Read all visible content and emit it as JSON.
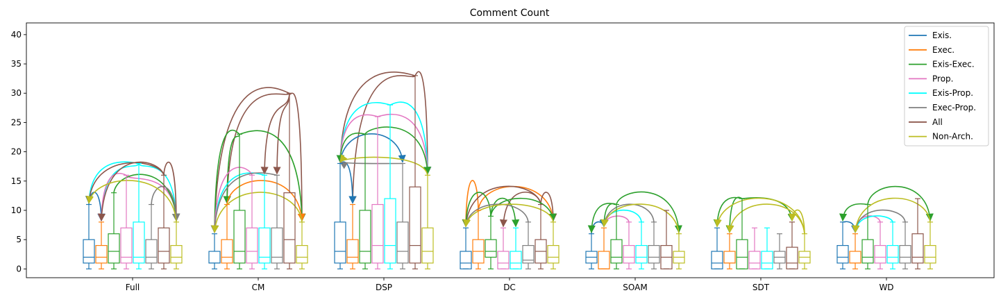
{
  "chart_data": {
    "type": "box",
    "title": "Comment Count",
    "xlabel": "",
    "ylabel": "",
    "ylim": [
      -1.5,
      42
    ],
    "yticks": [
      0,
      5,
      10,
      15,
      20,
      25,
      30,
      35,
      40
    ],
    "legend_position": "top-right",
    "categories": [
      "Full",
      "CM",
      "DSP",
      "DC",
      "SOAM",
      "SDT",
      "WD"
    ],
    "series": [
      {
        "name": "Exis.",
        "color": "#1f77b4",
        "boxes": [
          {
            "min": 0,
            "q1": 1,
            "median": 2,
            "q3": 5,
            "max": 11
          },
          {
            "min": 0,
            "q1": 1,
            "median": 1,
            "q3": 3,
            "max": 6
          },
          {
            "min": 0,
            "q1": 1,
            "median": 3,
            "q3": 8,
            "max": 18
          },
          {
            "min": 0,
            "q1": 0,
            "median": 1,
            "q3": 3,
            "max": 7
          },
          {
            "min": 0,
            "q1": 1,
            "median": 2,
            "q3": 3,
            "max": 6
          },
          {
            "min": 0,
            "q1": 0,
            "median": 1,
            "q3": 3,
            "max": 7
          },
          {
            "min": 0,
            "q1": 1,
            "median": 2,
            "q3": 4,
            "max": 8
          }
        ]
      },
      {
        "name": "Exec.",
        "color": "#ff7f0e",
        "boxes": [
          {
            "min": 0,
            "q1": 1,
            "median": 2,
            "q3": 4,
            "max": 8
          },
          {
            "min": 0,
            "q1": 1,
            "median": 2,
            "q3": 5,
            "max": 11
          },
          {
            "min": 0,
            "q1": 1,
            "median": 2,
            "q3": 5,
            "max": 11
          },
          {
            "min": 0,
            "q1": 1,
            "median": 3,
            "q3": 5,
            "max": 10
          },
          {
            "min": 0,
            "q1": 0,
            "median": 0,
            "q3": 3,
            "max": 7
          },
          {
            "min": 0,
            "q1": 1,
            "median": 1,
            "q3": 3,
            "max": 6
          },
          {
            "min": 0,
            "q1": 1,
            "median": 1,
            "q3": 3,
            "max": 6
          }
        ]
      },
      {
        "name": "Exis-Exec.",
        "color": "#2ca02c",
        "boxes": [
          {
            "min": 0,
            "q1": 1,
            "median": 3,
            "q3": 6,
            "max": 13
          },
          {
            "min": 0,
            "q1": 1,
            "median": 3,
            "q3": 10,
            "max": 23
          },
          {
            "min": 0,
            "q1": 1,
            "median": 3,
            "q3": 10,
            "max": 23
          },
          {
            "min": 0,
            "q1": 2,
            "median": 3,
            "q3": 5,
            "max": 9
          },
          {
            "min": 0,
            "q1": 1,
            "median": 2,
            "q3": 5,
            "max": 11
          },
          {
            "min": 0,
            "q1": 0,
            "median": 2,
            "q3": 5,
            "max": 12
          },
          {
            "min": 0,
            "q1": 1,
            "median": 2,
            "q3": 5,
            "max": 11
          }
        ]
      },
      {
        "name": "Prop.",
        "color": "#e377c2",
        "boxes": [
          {
            "min": 0,
            "q1": 1,
            "median": 2,
            "q3": 7,
            "max": 16
          },
          {
            "min": 0,
            "q1": 1,
            "median": 3,
            "q3": 7,
            "max": 16
          },
          {
            "min": 0,
            "q1": 1,
            "median": 4,
            "q3": 11,
            "max": 26
          },
          {
            "min": 0,
            "q1": 0,
            "median": 1,
            "q3": 3,
            "max": 7
          },
          {
            "min": 0,
            "q1": 1,
            "median": 2,
            "q3": 4,
            "max": 8
          },
          {
            "min": 0,
            "q1": 0,
            "median": 1,
            "q3": 3,
            "max": 7
          },
          {
            "min": 0,
            "q1": 1,
            "median": 2,
            "q3": 4,
            "max": 8
          }
        ]
      },
      {
        "name": "Exis-Prop.",
        "color": "#00ffff",
        "boxes": [
          {
            "min": 0,
            "q1": 1,
            "median": 2,
            "q3": 8,
            "max": 18
          },
          {
            "min": 0,
            "q1": 1,
            "median": 2,
            "q3": 7,
            "max": 16
          },
          {
            "min": 0,
            "q1": 1,
            "median": 4,
            "q3": 12,
            "max": 28
          },
          {
            "min": 0,
            "q1": 0,
            "median": 1,
            "q3": 3,
            "max": 7
          },
          {
            "min": 0,
            "q1": 1,
            "median": 2,
            "q3": 4,
            "max": 8
          },
          {
            "min": 0,
            "q1": 0,
            "median": 1,
            "q3": 3,
            "max": 7
          },
          {
            "min": 0,
            "q1": 1,
            "median": 2,
            "q3": 4,
            "max": 8
          }
        ]
      },
      {
        "name": "Exec-Prop.",
        "color": "#7f7f7f",
        "boxes": [
          {
            "min": 0,
            "q1": 1,
            "median": 2,
            "q3": 5,
            "max": 11
          },
          {
            "min": 0,
            "q1": 1,
            "median": 2,
            "q3": 7,
            "max": 16
          },
          {
            "min": 0,
            "q1": 1,
            "median": 3,
            "q3": 8,
            "max": 18
          },
          {
            "min": 0,
            "q1": 1,
            "median": 1.5,
            "q3": 4,
            "max": 8
          },
          {
            "min": 0,
            "q1": 1,
            "median": 2,
            "q3": 4,
            "max": 8
          },
          {
            "min": 0,
            "q1": 1,
            "median": 2,
            "q3": 3,
            "max": 6
          },
          {
            "min": 0,
            "q1": 1,
            "median": 2,
            "q3": 4,
            "max": 8
          }
        ]
      },
      {
        "name": "All",
        "color": "#8c564b",
        "boxes": [
          {
            "min": 0,
            "q1": 1,
            "median": 3,
            "q3": 7,
            "max": 16
          },
          {
            "min": 0,
            "q1": 1,
            "median": 5,
            "q3": 13,
            "max": 30
          },
          {
            "min": 0,
            "q1": 1,
            "median": 4,
            "q3": 14,
            "max": 33
          },
          {
            "min": 0,
            "q1": 1,
            "median": 3,
            "q3": 5,
            "max": 11
          },
          {
            "min": 0,
            "q1": 0,
            "median": 2,
            "q3": 4,
            "max": 10
          },
          {
            "min": 0,
            "q1": 0,
            "median": 1,
            "q3": 3.7,
            "max": 8
          },
          {
            "min": 0,
            "q1": 1,
            "median": 2,
            "q3": 6,
            "max": 12
          }
        ]
      },
      {
        "name": "Non-Arch.",
        "color": "#bcbd22",
        "boxes": [
          {
            "min": 0,
            "q1": 1,
            "median": 2,
            "q3": 4,
            "max": 8
          },
          {
            "min": 0,
            "q1": 1,
            "median": 2,
            "q3": 4,
            "max": 8
          },
          {
            "min": 0,
            "q1": 1,
            "median": 3,
            "q3": 7,
            "max": 16
          },
          {
            "min": 0,
            "q1": 1,
            "median": 2,
            "q3": 4,
            "max": 8
          },
          {
            "min": 0,
            "q1": 1,
            "median": 2,
            "q3": 3,
            "max": 6
          },
          {
            "min": 0,
            "q1": 1,
            "median": 2,
            "q3": 3,
            "max": 6
          },
          {
            "min": 0,
            "q1": 1,
            "median": 2,
            "q3": 4,
            "max": 8
          }
        ]
      }
    ],
    "significance_arcs": [
      {
        "group": "Full",
        "from": "Exis.",
        "to": "Exec.",
        "color": "#1f77b4",
        "height": 13
      },
      {
        "group": "Full",
        "from": "Exis-Prop.",
        "to": "Exis.",
        "color": "#00ffff",
        "height": 18
      },
      {
        "group": "Full",
        "from": "Exis-Prop.",
        "to": "Exec.",
        "color": "#00ffff",
        "height": 17
      },
      {
        "group": "Full",
        "from": "Exis-Prop.",
        "to": "Non-Arch.",
        "color": "#00ffff",
        "height": 17
      },
      {
        "group": "Full",
        "from": "Prop.",
        "to": "Exec.",
        "color": "#e377c2",
        "height": 16
      },
      {
        "group": "Full",
        "from": "Prop.",
        "to": "Non-Arch.",
        "color": "#e377c2",
        "height": 15
      },
      {
        "group": "Full",
        "from": "All",
        "to": "Exis.",
        "color": "#8c564b",
        "height": 18
      },
      {
        "group": "Full",
        "from": "All",
        "to": "Exec.",
        "color": "#8c564b",
        "height": 18
      },
      {
        "group": "Full",
        "from": "All",
        "to": "Non-Arch.",
        "color": "#8c564b",
        "height": 18
      },
      {
        "group": "Full",
        "from": "Exis-Exec.",
        "to": "Non-Arch.",
        "color": "#2ca02c",
        "height": 16
      },
      {
        "group": "Full",
        "from": "Exec-Prop.",
        "to": "Non-Arch.",
        "color": "#7f7f7f",
        "height": 14
      },
      {
        "group": "Full",
        "from": "Non-Arch.",
        "to": "Exis.",
        "color": "#bcbd22",
        "height": 15
      },
      {
        "group": "CM",
        "from": "All",
        "to": "Exis.",
        "color": "#8c564b",
        "height": 30
      },
      {
        "group": "CM",
        "from": "All",
        "to": "Exec.",
        "color": "#8c564b",
        "height": 29
      },
      {
        "group": "CM",
        "from": "All",
        "to": "Non-Arch.",
        "color": "#8c564b",
        "height": 29
      },
      {
        "group": "CM",
        "from": "All",
        "to": "Exis-Prop.",
        "color": "#8c564b",
        "height": 27
      },
      {
        "group": "CM",
        "from": "All",
        "to": "Exec-Prop.",
        "color": "#8c564b",
        "height": 27
      },
      {
        "group": "CM",
        "from": "Exis-Exec.",
        "to": "Exis.",
        "color": "#2ca02c",
        "height": 23
      },
      {
        "group": "CM",
        "from": "Exis-Exec.",
        "to": "Exec.",
        "color": "#2ca02c",
        "height": 22
      },
      {
        "group": "CM",
        "from": "Exis-Exec.",
        "to": "Non-Arch.",
        "color": "#2ca02c",
        "height": 23
      },
      {
        "group": "CM",
        "from": "Exis-Prop.",
        "to": "Exis.",
        "color": "#00ffff",
        "height": 16
      },
      {
        "group": "CM",
        "from": "Prop.",
        "to": "Exis.",
        "color": "#e377c2",
        "height": 17
      },
      {
        "group": "CM",
        "from": "Exec-Prop.",
        "to": "Exis.",
        "color": "#7f7f7f",
        "height": 16
      },
      {
        "group": "CM",
        "from": "Exec.",
        "to": "Non-Arch.",
        "color": "#ff7f0e",
        "height": 15
      },
      {
        "group": "CM",
        "from": "Non-Arch.",
        "to": "Exis.",
        "color": "#bcbd22",
        "height": 13
      },
      {
        "group": "DSP",
        "from": "All",
        "to": "Exis.",
        "color": "#8c564b",
        "height": 33
      },
      {
        "group": "DSP",
        "from": "All",
        "to": "Exec.",
        "color": "#8c564b",
        "height": 32
      },
      {
        "group": "DSP",
        "from": "All",
        "to": "Non-Arch.",
        "color": "#8c564b",
        "height": 33
      },
      {
        "group": "DSP",
        "from": "Exis-Prop.",
        "to": "Exis.",
        "color": "#00ffff",
        "height": 28
      },
      {
        "group": "DSP",
        "from": "Exis-Prop.",
        "to": "Non-Arch.",
        "color": "#00ffff",
        "height": 28
      },
      {
        "group": "DSP",
        "from": "Prop.",
        "to": "Exis.",
        "color": "#e377c2",
        "height": 26
      },
      {
        "group": "DSP",
        "from": "Prop.",
        "to": "Non-Arch.",
        "color": "#e377c2",
        "height": 26
      },
      {
        "group": "DSP",
        "from": "Exis-Exec.",
        "to": "Exis.",
        "color": "#2ca02c",
        "height": 23
      },
      {
        "group": "DSP",
        "from": "Exis-Exec.",
        "to": "Non-Arch.",
        "color": "#2ca02c",
        "height": 24
      },
      {
        "group": "DSP",
        "from": "Exis.",
        "to": "Exec-Prop.",
        "color": "#1f77b4",
        "height": 23
      },
      {
        "group": "DSP",
        "from": "Exis.",
        "to": "Exec.",
        "color": "#1f77b4",
        "height": 18
      },
      {
        "group": "DSP",
        "from": "Exec-Prop.",
        "to": "Exis.",
        "color": "#7f7f7f",
        "height": 18
      },
      {
        "group": "DSP",
        "from": "Non-Arch.",
        "to": "Exis.",
        "color": "#bcbd22",
        "height": 19
      },
      {
        "group": "DC",
        "from": "Exec.",
        "to": "Exis.",
        "color": "#ff7f0e",
        "height": 15
      },
      {
        "group": "DC",
        "from": "Exec.",
        "to": "Non-Arch.",
        "color": "#ff7f0e",
        "height": 14
      },
      {
        "group": "DC",
        "from": "All",
        "to": "Exis.",
        "color": "#8c564b",
        "height": 14
      },
      {
        "group": "DC",
        "from": "All",
        "to": "Prop.",
        "color": "#8c564b",
        "height": 13
      },
      {
        "group": "DC",
        "from": "All",
        "to": "Non-Arch.",
        "color": "#8c564b",
        "height": 13
      },
      {
        "group": "DC",
        "from": "Exis-Exec.",
        "to": "Exis.",
        "color": "#2ca02c",
        "height": 13
      },
      {
        "group": "DC",
        "from": "Exis-Exec.",
        "to": "Exis-Prop.",
        "color": "#2ca02c",
        "height": 12
      },
      {
        "group": "DC",
        "from": "Exis-Exec.",
        "to": "Non-Arch.",
        "color": "#2ca02c",
        "height": 12
      },
      {
        "group": "DC",
        "from": "Exec-Prop.",
        "to": "Exis.",
        "color": "#7f7f7f",
        "height": 11
      },
      {
        "group": "DC",
        "from": "Non-Arch.",
        "to": "Exis.",
        "color": "#bcbd22",
        "height": 11
      },
      {
        "group": "SOAM",
        "from": "Exis.",
        "to": "Exec.",
        "color": "#1f77b4",
        "height": 8
      },
      {
        "group": "SOAM",
        "from": "Exis-Exec.",
        "to": "Exis.",
        "color": "#2ca02c",
        "height": 11
      },
      {
        "group": "SOAM",
        "from": "Exis-Exec.",
        "to": "Exec.",
        "color": "#2ca02c",
        "height": 11
      },
      {
        "group": "SOAM",
        "from": "Exis-Exec.",
        "to": "Non-Arch.",
        "color": "#2ca02c",
        "height": 13
      },
      {
        "group": "SOAM",
        "from": "Prop.",
        "to": "Exec.",
        "color": "#e377c2",
        "height": 9
      },
      {
        "group": "SOAM",
        "from": "Exis-Prop.",
        "to": "Exec.",
        "color": "#00ffff",
        "height": 10
      },
      {
        "group": "SOAM",
        "from": "Exec-Prop.",
        "to": "Exec.",
        "color": "#7f7f7f",
        "height": 11
      },
      {
        "group": "SOAM",
        "from": "Non-Arch.",
        "to": "Exec.",
        "color": "#bcbd22",
        "height": 11
      },
      {
        "group": "SDT",
        "from": "Exis-Exec.",
        "to": "Exis.",
        "color": "#2ca02c",
        "height": 12
      },
      {
        "group": "SDT",
        "from": "Exis-Exec.",
        "to": "Exec.",
        "color": "#2ca02c",
        "height": 12
      },
      {
        "group": "SDT",
        "from": "Exis-Exec.",
        "to": "All",
        "color": "#2ca02c",
        "height": 12
      },
      {
        "group": "SDT",
        "from": "Non-Arch.",
        "to": "Exis.",
        "color": "#bcbd22",
        "height": 12
      },
      {
        "group": "SDT",
        "from": "Non-Arch.",
        "to": "Exec.",
        "color": "#bcbd22",
        "height": 11
      },
      {
        "group": "SDT",
        "from": "Non-Arch.",
        "to": "All",
        "color": "#bcbd22",
        "height": 10
      },
      {
        "group": "WD",
        "from": "Exis.",
        "to": "Exec.",
        "color": "#1f77b4",
        "height": 8
      },
      {
        "group": "WD",
        "from": "Exis-Exec.",
        "to": "Exis.",
        "color": "#2ca02c",
        "height": 11
      },
      {
        "group": "WD",
        "from": "Exis-Exec.",
        "to": "Non-Arch.",
        "color": "#2ca02c",
        "height": 14
      },
      {
        "group": "WD",
        "from": "Prop.",
        "to": "Exec.",
        "color": "#e377c2",
        "height": 9
      },
      {
        "group": "WD",
        "from": "Exis-Prop.",
        "to": "Exec.",
        "color": "#00ffff",
        "height": 9
      },
      {
        "group": "WD",
        "from": "Exec-Prop.",
        "to": "Exec.",
        "color": "#7f7f7f",
        "height": 10
      },
      {
        "group": "WD",
        "from": "Non-Arch.",
        "to": "Exec.",
        "color": "#bcbd22",
        "height": 12
      }
    ]
  }
}
